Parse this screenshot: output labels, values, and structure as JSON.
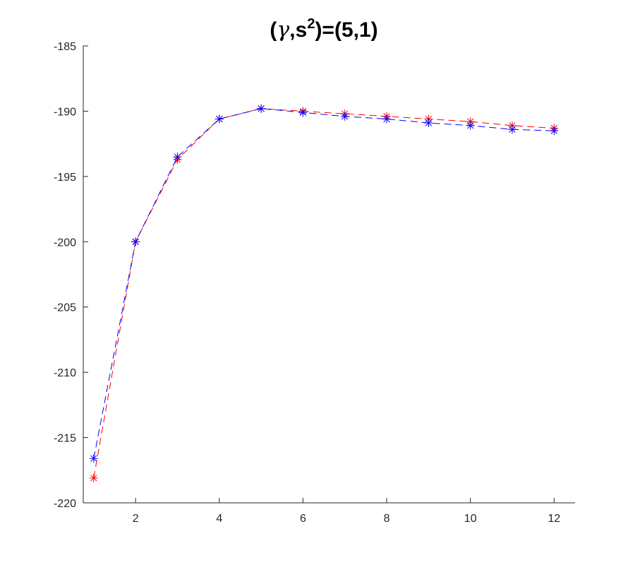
{
  "chart_data": {
    "type": "line",
    "title": "(γ,s²)=(5,1)",
    "title_parts": {
      "prefix": "(",
      "gamma": "γ",
      "comma_s": ",s",
      "sup": "2",
      "suffix": ")=(5,1)"
    },
    "xlabel": "",
    "ylabel": "",
    "xlim": [
      0.75,
      12.5
    ],
    "ylim": [
      -220,
      -185
    ],
    "xticks": [
      2,
      4,
      6,
      8,
      10,
      12
    ],
    "yticks": [
      -220,
      -215,
      -210,
      -205,
      -200,
      -195,
      -190,
      -185
    ],
    "grid": false,
    "marker": "asterisk",
    "line_style": "dashed",
    "x": [
      1,
      2,
      3,
      4,
      5,
      6,
      7,
      8,
      9,
      10,
      11,
      12
    ],
    "series": [
      {
        "color": "#ff0000",
        "values": [
          -218.1,
          -200.0,
          -193.7,
          -190.6,
          -189.8,
          -190.0,
          -190.2,
          -190.4,
          -190.6,
          -190.8,
          -191.1,
          -191.3
        ]
      },
      {
        "color": "#0000ff",
        "values": [
          -216.6,
          -200.0,
          -193.5,
          -190.6,
          -189.8,
          -190.1,
          -190.4,
          -190.6,
          -190.9,
          -191.1,
          -191.4,
          -191.5
        ]
      }
    ]
  }
}
